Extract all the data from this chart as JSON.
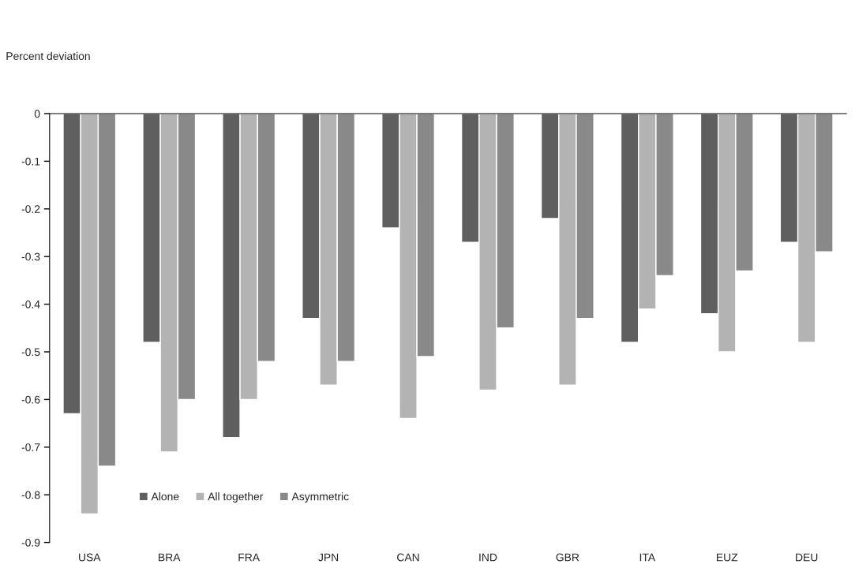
{
  "chart_data": {
    "type": "bar",
    "ylabel": "Percent deviation",
    "categories": [
      "USA",
      "BRA",
      "FRA",
      "JPN",
      "CAN",
      "IND",
      "GBR",
      "ITA",
      "EUZ",
      "DEU"
    ],
    "series": [
      {
        "name": "Alone",
        "color": "#5f5f5f",
        "values": [
          -0.63,
          -0.48,
          -0.68,
          -0.43,
          -0.24,
          -0.27,
          -0.22,
          -0.48,
          -0.42,
          -0.27
        ]
      },
      {
        "name": "All together",
        "color": "#b3b3b3",
        "values": [
          -0.84,
          -0.71,
          -0.6,
          -0.57,
          -0.64,
          -0.58,
          -0.57,
          -0.41,
          -0.5,
          -0.48
        ]
      },
      {
        "name": "Asymmetric",
        "color": "#898989",
        "values": [
          -0.74,
          -0.6,
          -0.52,
          -0.52,
          -0.51,
          -0.45,
          -0.43,
          -0.34,
          -0.33,
          -0.29
        ]
      }
    ],
    "ylim": [
      -0.9,
      0
    ],
    "yticks": [
      -0.9,
      -0.8,
      -0.7,
      -0.6,
      -0.5,
      -0.4,
      -0.3,
      -0.2,
      -0.1,
      0
    ],
    "grid": false,
    "legend": "bottom left"
  }
}
